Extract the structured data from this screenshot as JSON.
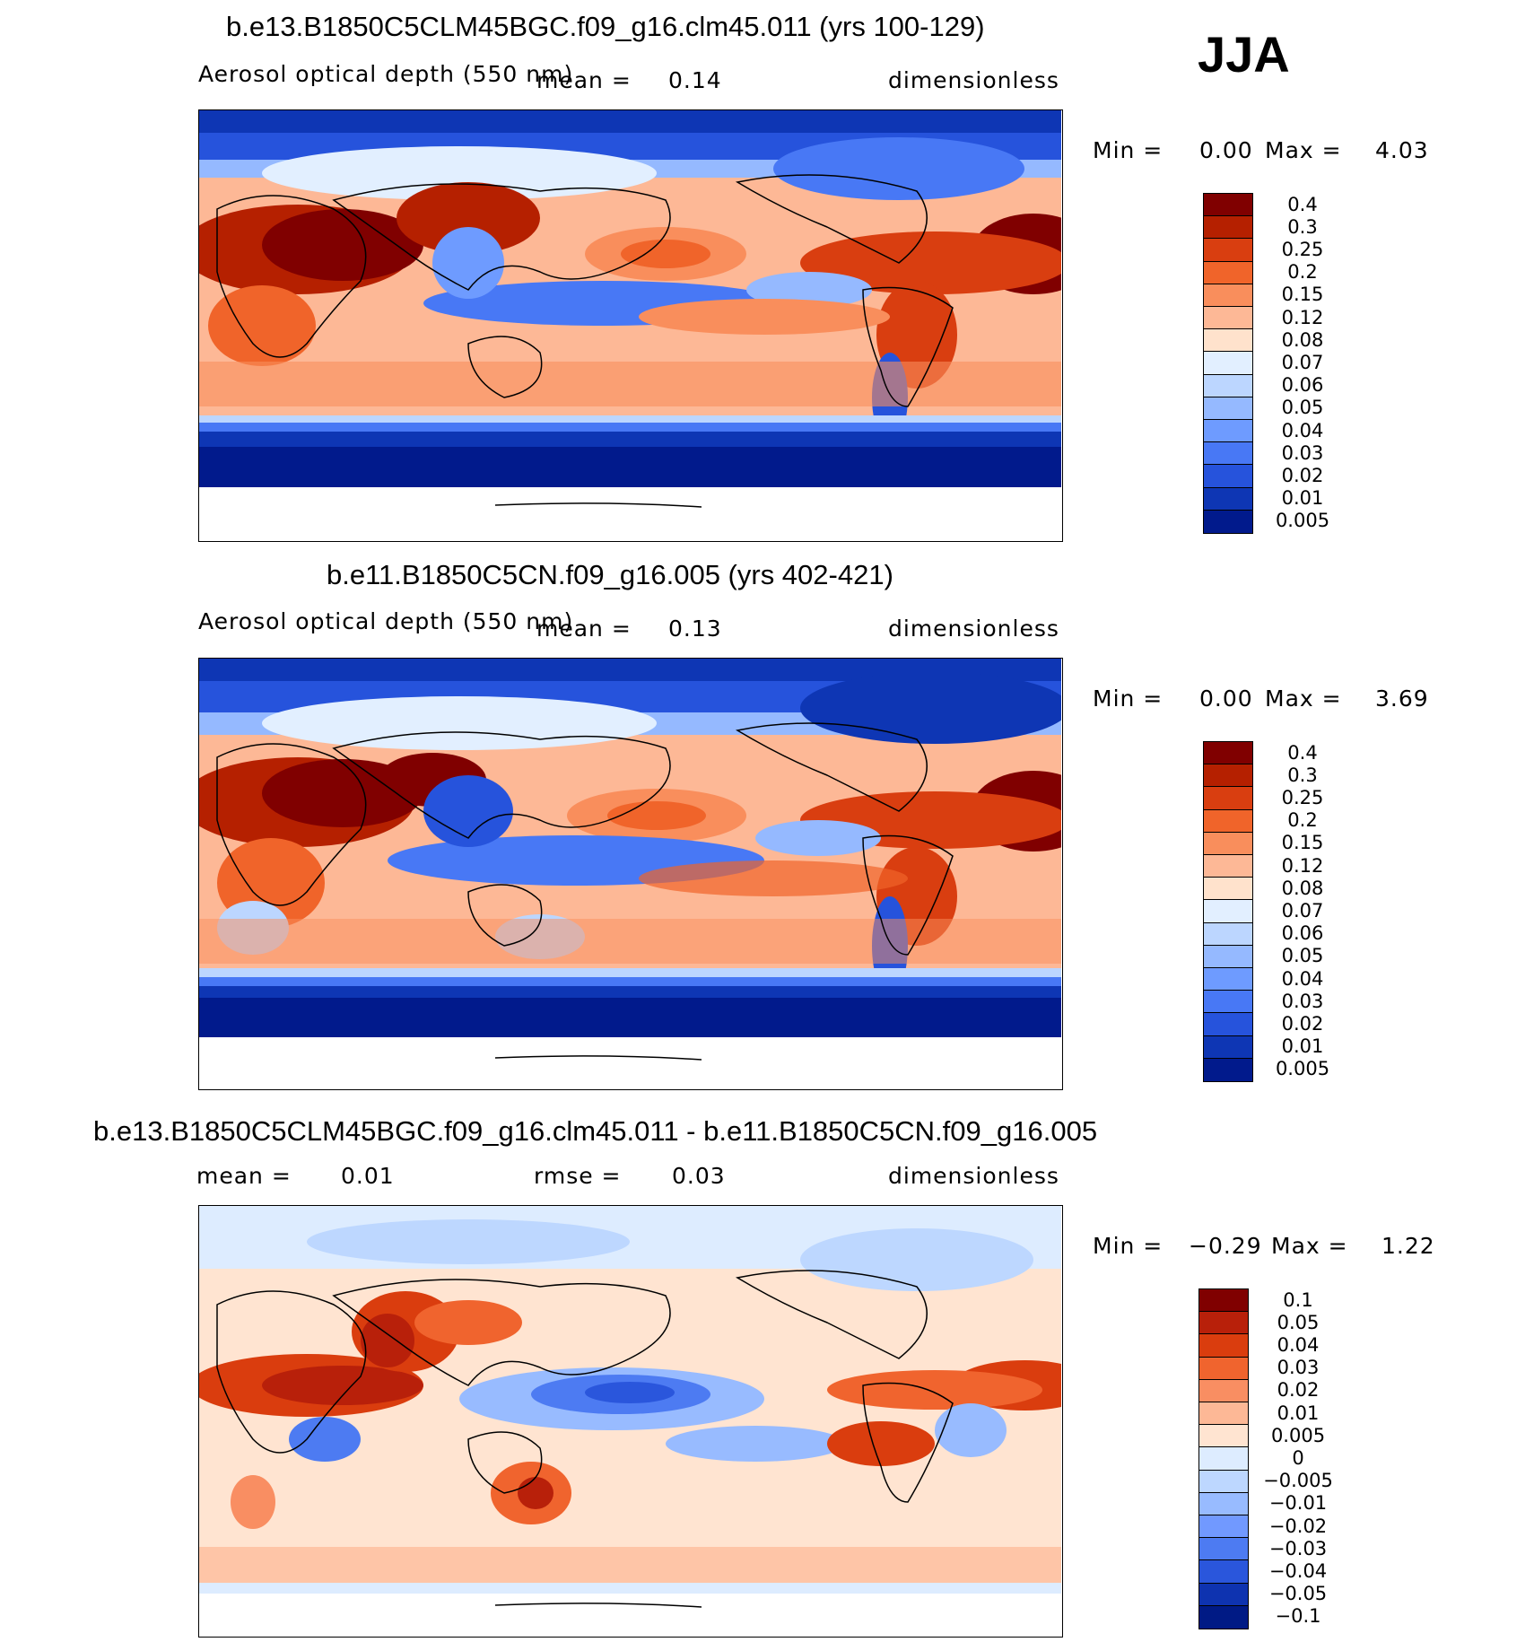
{
  "season": "JJA",
  "panels": [
    {
      "title": "b.e13.B1850C5CLM45BGC.f09_g16.clm45.011 (yrs 100-129)",
      "variable": "Aerosol optical depth (550 nm)",
      "mean_label": "mean =",
      "mean_value": "0.14",
      "units": "dimensionless",
      "min_label": "Min =",
      "min_value": "0.00",
      "max_label": "Max =",
      "max_value": "4.03",
      "colorbar_levels": [
        "0.4",
        "0.3",
        "0.25",
        "0.2",
        "0.15",
        "0.12",
        "0.08",
        "0.07",
        "0.06",
        "0.05",
        "0.04",
        "0.03",
        "0.02",
        "0.01",
        "0.005"
      ]
    },
    {
      "title": "b.e11.B1850C5CN.f09_g16.005 (yrs 402-421)",
      "variable": "Aerosol optical depth (550 nm)",
      "mean_label": "mean =",
      "mean_value": "0.13",
      "units": "dimensionless",
      "min_label": "Min =",
      "min_value": "0.00",
      "max_label": "Max =",
      "max_value": "3.69",
      "colorbar_levels": [
        "0.4",
        "0.3",
        "0.25",
        "0.2",
        "0.15",
        "0.12",
        "0.08",
        "0.07",
        "0.06",
        "0.05",
        "0.04",
        "0.03",
        "0.02",
        "0.01",
        "0.005"
      ]
    },
    {
      "title": "b.e13.B1850C5CLM45BGC.f09_g16.clm45.011 - b.e11.B1850C5CN.f09_g16.005",
      "mean_label": "mean =",
      "mean_value": "0.01",
      "rmse_label": "rmse =",
      "rmse_value": "0.03",
      "units": "dimensionless",
      "min_label": "Min =",
      "min_value": "−0.29",
      "max_label": "Max =",
      "max_value": "1.22",
      "colorbar_levels": [
        "0.1",
        "0.05",
        "0.04",
        "0.03",
        "0.02",
        "0.01",
        "0.005",
        "0",
        "−0.005",
        "−0.01",
        "−0.02",
        "−0.03",
        "−0.04",
        "−0.05",
        "−0.1"
      ]
    }
  ],
  "colors": {
    "abs_scale": [
      "#800000",
      "#b52000",
      "#d93e10",
      "#f0642a",
      "#f98e5c",
      "#fdb896",
      "#ffe2cc",
      "#e2efff",
      "#bcd6ff",
      "#95b9ff",
      "#6e9bff",
      "#4878f5",
      "#2653dc",
      "#0e36b4",
      "#011a8c"
    ],
    "diff_scale": [
      "#800000",
      "#b8200a",
      "#da3d0e",
      "#f0642e",
      "#f98e62",
      "#fdb896",
      "#ffe4d1",
      "#ddecff",
      "#bdd7ff",
      "#98bbff",
      "#7199ff",
      "#4d7bf2",
      "#2a56dc",
      "#0e33b0",
      "#001a85"
    ],
    "map_border": "#000000"
  }
}
